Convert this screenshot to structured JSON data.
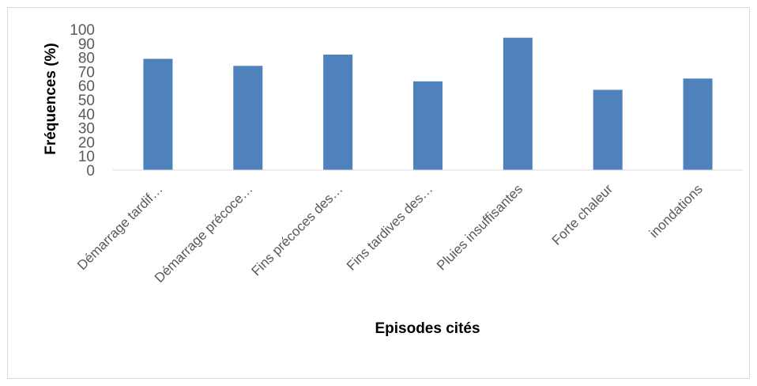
{
  "chart_data": {
    "type": "bar",
    "title": "",
    "xlabel": "Episodes cités",
    "ylabel": "Fréquences (%)",
    "ylim": [
      0,
      100
    ],
    "yticks": [
      0,
      10,
      20,
      30,
      40,
      50,
      60,
      70,
      80,
      90,
      100
    ],
    "categories": [
      "Démarrage tardif…",
      "Démarrage précoce…",
      "Fins précoces des…",
      "Fins tardives des…",
      "Pluies insuffisantes",
      "Forte chaleur",
      "inondations"
    ],
    "values": [
      79,
      74,
      82,
      63,
      94,
      57,
      65
    ],
    "bar_color": "#4f81bd",
    "grid": false,
    "legend": "none"
  }
}
